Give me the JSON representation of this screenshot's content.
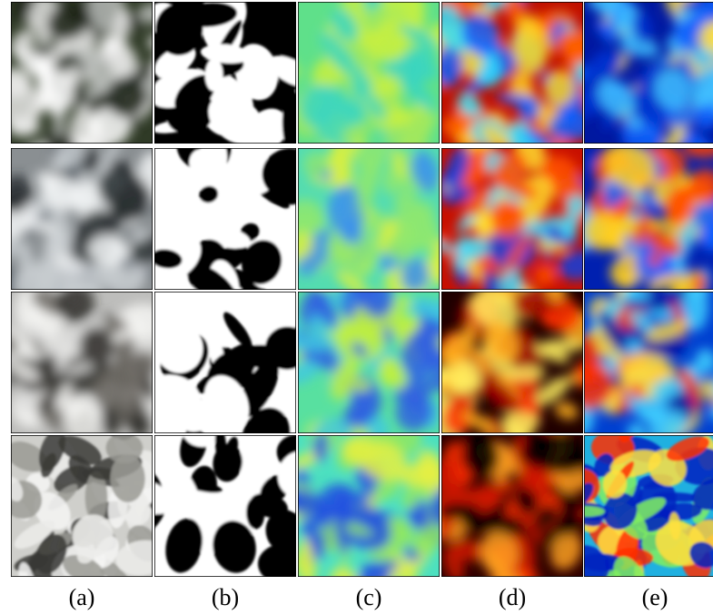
{
  "figure": {
    "panels": [
      {
        "label": "(a)"
      },
      {
        "label": "(b)"
      },
      {
        "label": "(c)"
      },
      {
        "label": "(d)"
      },
      {
        "label": "(e)"
      }
    ]
  }
}
